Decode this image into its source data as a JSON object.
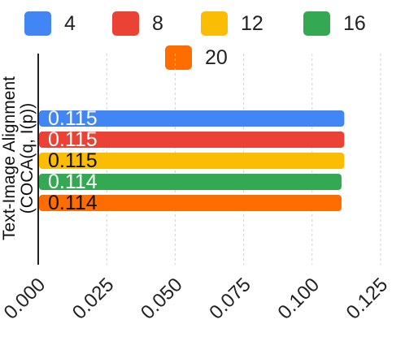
{
  "chart_data": {
    "type": "bar",
    "orientation": "horizontal",
    "title": "",
    "xlabel": "",
    "ylabel_lines": [
      "Text-Image Alignment",
      "(COCA(q, I(p))"
    ],
    "xlim": [
      0,
      0.125
    ],
    "x_ticks": [
      "0.000",
      "0.025",
      "0.050",
      "0.075",
      "0.100",
      "0.125"
    ],
    "grid": true,
    "legend_position": "top",
    "series": [
      {
        "name": "4",
        "value": 0.115,
        "label": "0.115",
        "color": "#4285F4",
        "label_color": "#ffffff"
      },
      {
        "name": "8",
        "value": 0.115,
        "label": "0.115",
        "color": "#EA4335",
        "label_color": "#ffffff"
      },
      {
        "name": "12",
        "value": 0.115,
        "label": "0.115",
        "color": "#FBBC04",
        "label_color": "#111111"
      },
      {
        "name": "16",
        "value": 0.114,
        "label": "0.114",
        "color": "#34A853",
        "label_color": "#ffffff"
      },
      {
        "name": "20",
        "value": 0.114,
        "label": "0.114",
        "color": "#FF6D01",
        "label_color": "#111111"
      }
    ]
  }
}
